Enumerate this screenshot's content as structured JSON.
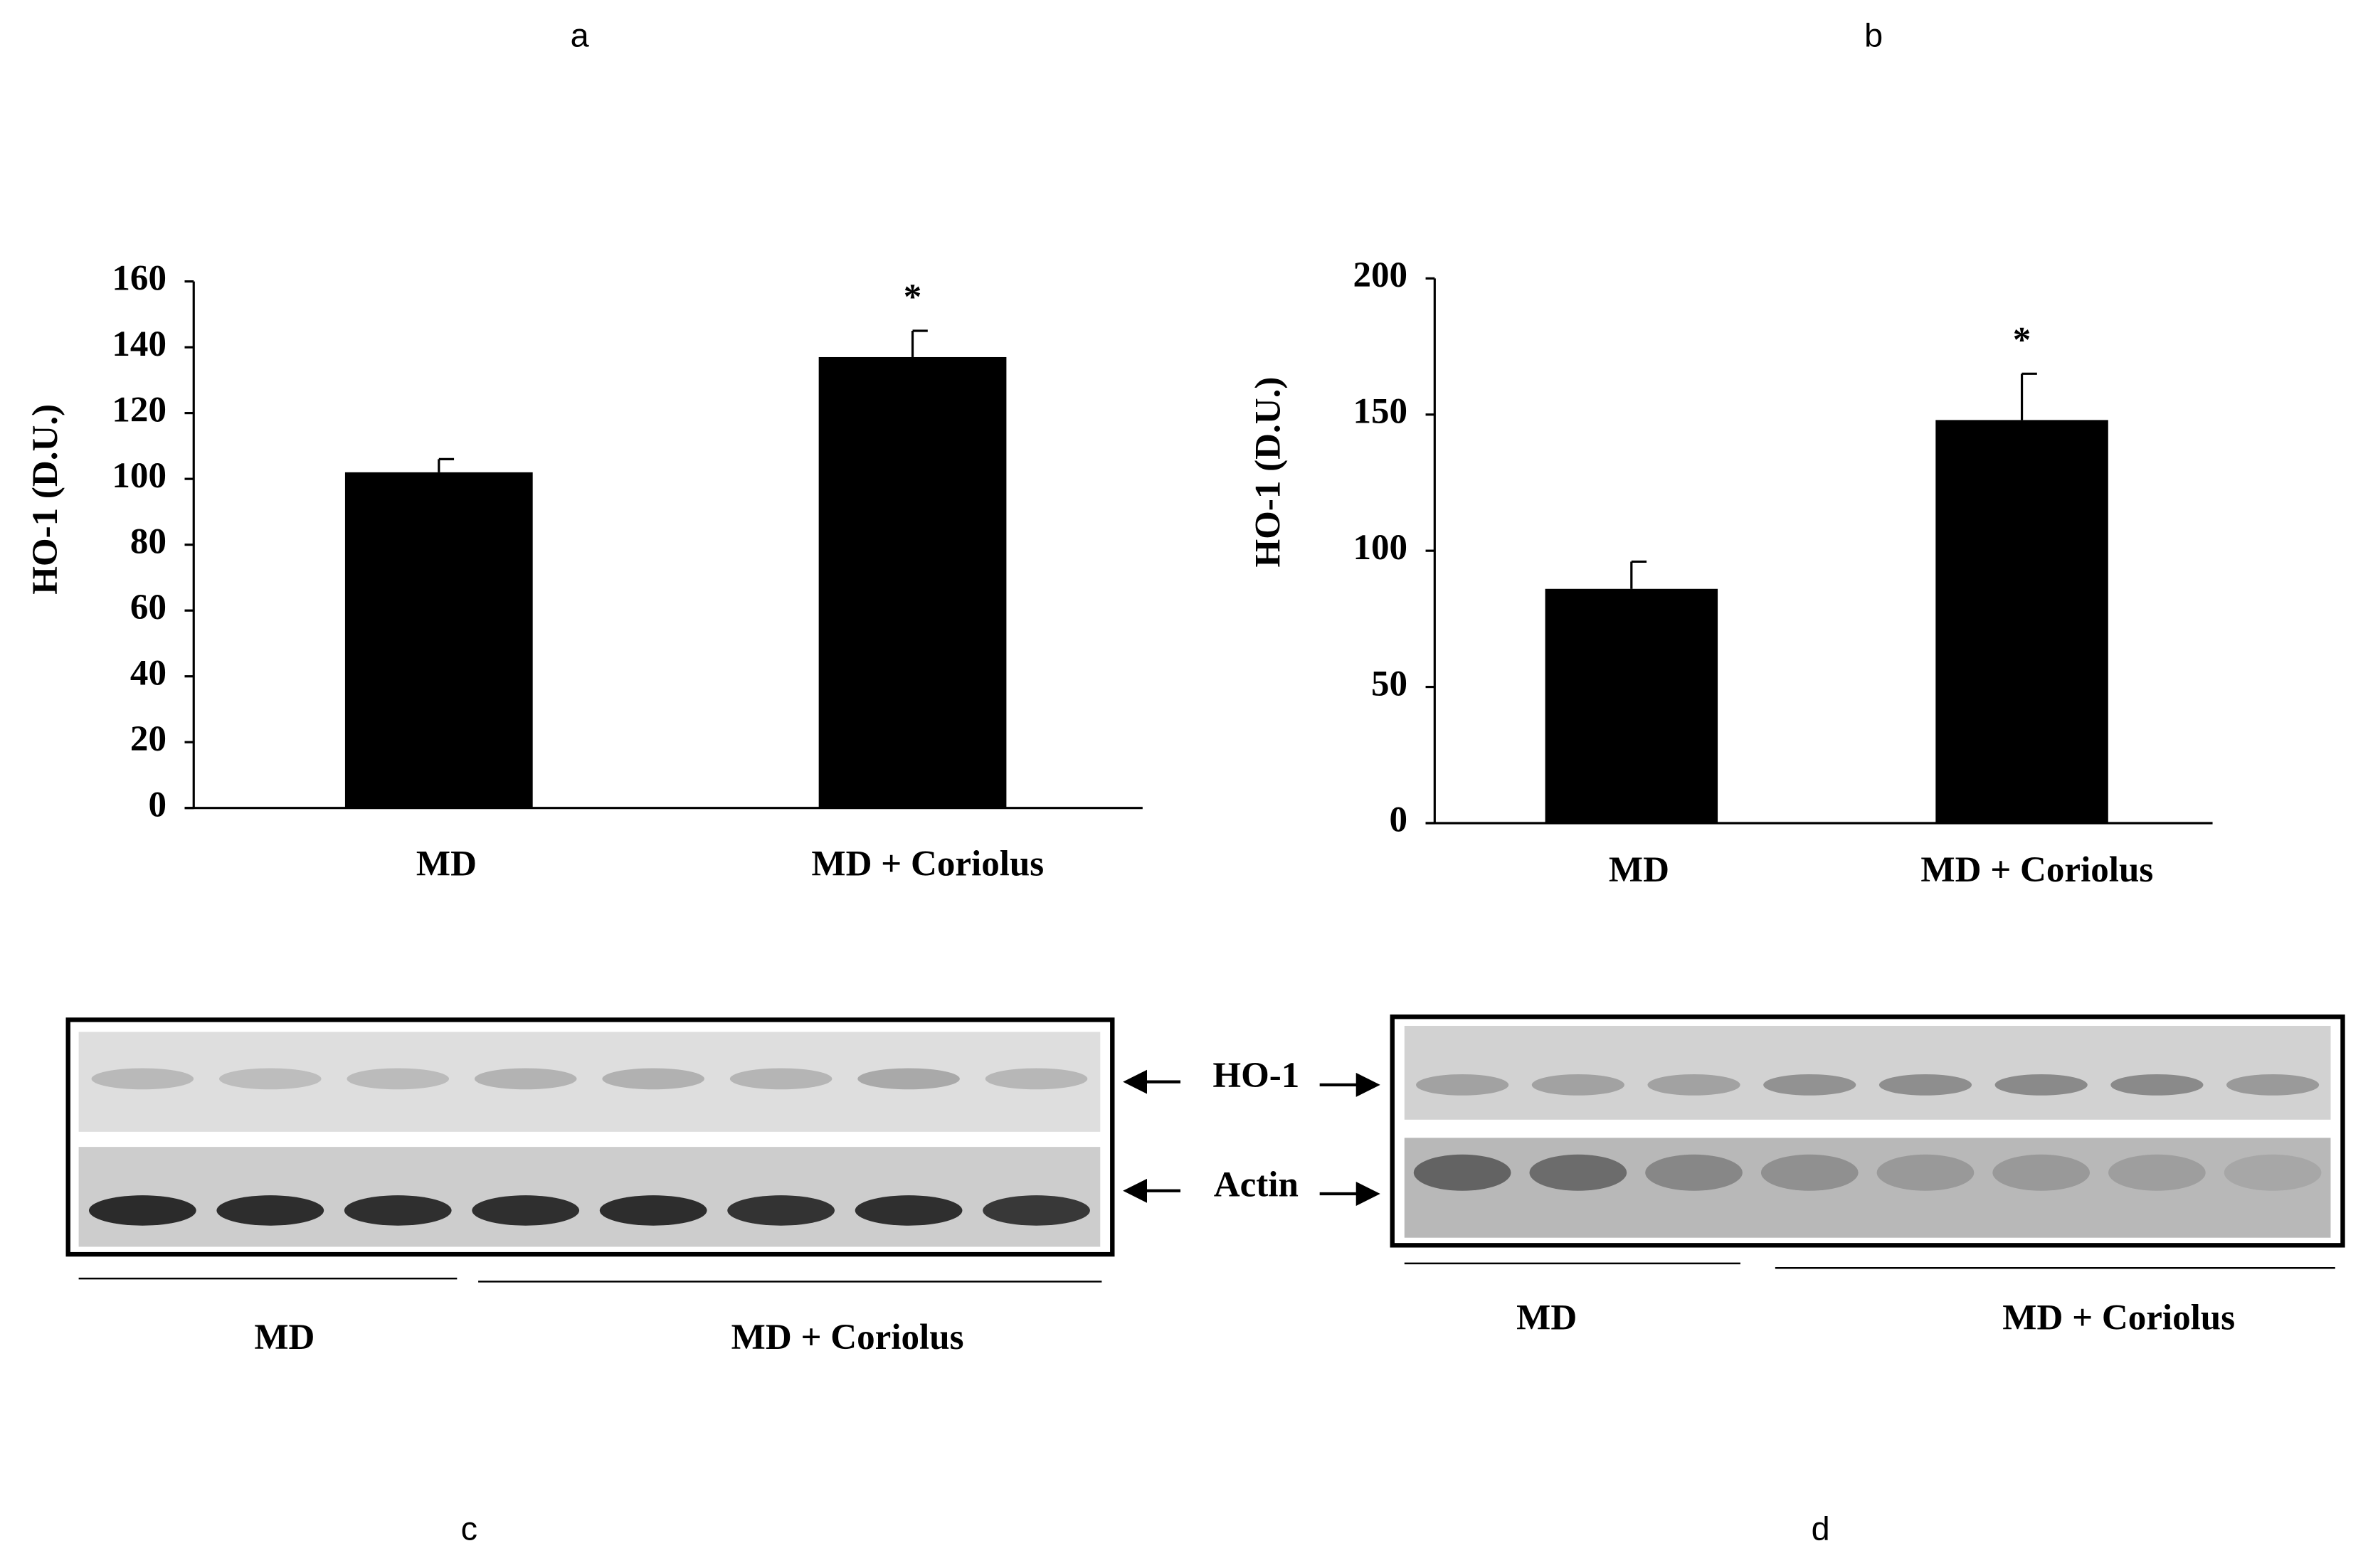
{
  "chart_data": [
    {
      "type": "bar",
      "title": "a",
      "ylabel": "HO-1  (D.U.)",
      "categories": [
        "MD",
        "MD + Coriolus"
      ],
      "values": [
        102,
        137
      ],
      "errors": [
        4,
        8
      ],
      "markers": [
        null,
        "*"
      ],
      "color": "#000000",
      "ylim": [
        0,
        160
      ],
      "yticks": [
        0,
        20,
        40,
        60,
        80,
        100,
        120,
        140,
        160
      ],
      "grid": false
    },
    {
      "type": "bar",
      "title": "b",
      "ylabel": "HO-1  (D.U.)",
      "categories": [
        "MD",
        "MD + Coriolus"
      ],
      "values": [
        86,
        148
      ],
      "errors": [
        10,
        17
      ],
      "markers": [
        null,
        "*"
      ],
      "color": "#000000",
      "ylim": [
        0,
        200
      ],
      "yticks": [
        0,
        50,
        100,
        150,
        200
      ],
      "grid": false
    }
  ],
  "band_labels": [
    "HO-1",
    "Actin"
  ],
  "blots": [
    {
      "label": "c",
      "groups": [
        "MD",
        "MD + Coriolus"
      ]
    },
    {
      "label": "d",
      "groups": [
        "MD",
        "MD + Coriolus"
      ]
    }
  ]
}
